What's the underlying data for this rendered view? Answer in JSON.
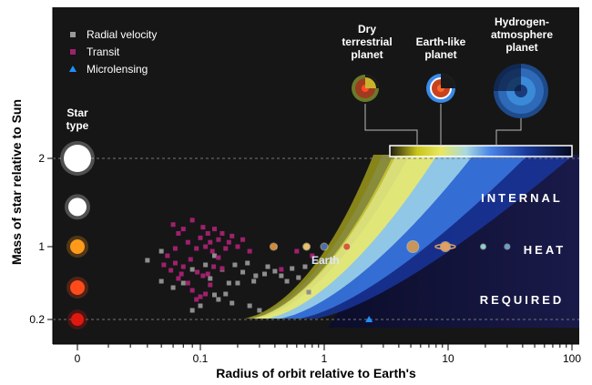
{
  "chart_data": {
    "type": "scatter",
    "title": "",
    "xlabel": "Radius of orbit relative to Earth's",
    "ylabel": "Mass of star relative to Sun",
    "x_scale": "log",
    "x_ticks": [
      {
        "value": 0.02,
        "label": "0"
      },
      {
        "value": 0.1,
        "label": "0.1"
      },
      {
        "value": 1,
        "label": "1"
      },
      {
        "value": 10,
        "label": "10"
      },
      {
        "value": 100,
        "label": "100"
      }
    ],
    "y_ticks": [
      {
        "value": 2,
        "label": "2"
      },
      {
        "value": 1,
        "label": "1"
      },
      {
        "value": 0.2,
        "label": "0.2"
      }
    ],
    "legend": [
      {
        "name": "Radial velocity",
        "marker": "square",
        "color": "#9a9a9a"
      },
      {
        "name": "Transit",
        "marker": "square",
        "color": "#a0206e"
      },
      {
        "name": "Microlensing",
        "marker": "triangle",
        "color": "#1e90ff"
      }
    ],
    "series": [
      {
        "name": "Radial velocity",
        "points": [
          [
            0.05,
            0.85
          ],
          [
            0.06,
            0.95
          ],
          [
            0.07,
            0.55
          ],
          [
            0.08,
            0.6
          ],
          [
            0.09,
            0.75
          ],
          [
            0.11,
            0.8
          ],
          [
            0.12,
            0.65
          ],
          [
            0.13,
            0.9
          ],
          [
            0.15,
            0.75
          ],
          [
            0.17,
            0.6
          ],
          [
            0.19,
            0.8
          ],
          [
            0.22,
            0.72
          ],
          [
            0.24,
            0.82
          ],
          [
            0.28,
            0.68
          ],
          [
            0.35,
            0.78
          ],
          [
            0.4,
            0.73
          ],
          [
            0.45,
            0.68
          ],
          [
            0.55,
            0.76
          ],
          [
            0.62,
            0.66
          ],
          [
            0.7,
            0.78
          ],
          [
            0.75,
            0.5
          ],
          [
            0.5,
            0.62
          ],
          [
            0.3,
            0.3
          ],
          [
            0.18,
            0.38
          ],
          [
            0.13,
            0.47
          ],
          [
            0.09,
            0.3
          ],
          [
            0.2,
            0.6
          ],
          [
            0.14,
            0.42
          ],
          [
            0.25,
            0.35
          ],
          [
            0.06,
            0.62
          ],
          [
            0.4,
            1.0
          ],
          [
            0.33,
            0.7
          ],
          [
            0.27,
            0.62
          ],
          [
            0.16,
            0.48
          ],
          [
            0.1,
            0.35
          ]
        ]
      },
      {
        "name": "Transit",
        "points": [
          [
            0.07,
            1.25
          ],
          [
            0.075,
            1.15
          ],
          [
            0.08,
            1.2
          ],
          [
            0.085,
            1.05
          ],
          [
            0.09,
            1.3
          ],
          [
            0.095,
            0.98
          ],
          [
            0.1,
            1.1
          ],
          [
            0.105,
            1.22
          ],
          [
            0.11,
            1.0
          ],
          [
            0.115,
            1.15
          ],
          [
            0.12,
            1.05
          ],
          [
            0.125,
            0.95
          ],
          [
            0.13,
            1.2
          ],
          [
            0.14,
            1.08
          ],
          [
            0.15,
            1.15
          ],
          [
            0.16,
            0.98
          ],
          [
            0.17,
            1.05
          ],
          [
            0.18,
            1.12
          ],
          [
            0.2,
            1.0
          ],
          [
            0.22,
            1.08
          ],
          [
            0.25,
            0.95
          ],
          [
            0.065,
            0.9
          ],
          [
            0.072,
            0.82
          ],
          [
            0.08,
            0.78
          ],
          [
            0.088,
            0.86
          ],
          [
            0.096,
            0.72
          ],
          [
            0.105,
            0.68
          ],
          [
            0.115,
            0.7
          ],
          [
            0.075,
            0.65
          ],
          [
            0.068,
            0.74
          ],
          [
            0.09,
            0.52
          ],
          [
            0.1,
            0.45
          ],
          [
            0.11,
            0.48
          ],
          [
            0.12,
            0.58
          ],
          [
            0.085,
            0.6
          ],
          [
            0.078,
            0.7
          ],
          [
            0.062,
            0.8
          ],
          [
            0.072,
            0.98
          ],
          [
            0.128,
            0.78
          ],
          [
            0.14,
            0.88
          ],
          [
            0.15,
            0.76
          ],
          [
            0.45,
            0.75
          ],
          [
            0.8,
            0.9
          ],
          [
            0.6,
            0.95
          ],
          [
            0.095,
            0.42
          ]
        ]
      },
      {
        "name": "Microlensing",
        "points": [
          [
            2.3,
            0.2
          ]
        ]
      }
    ],
    "star_types": {
      "label": "Star type",
      "items": [
        {
          "mass": 2,
          "color": "#ffffff"
        },
        {
          "mass": 1.45,
          "color": "#ffffff"
        },
        {
          "mass": 1,
          "color": "#ff9a1a"
        },
        {
          "mass": 0.55,
          "color": "#ff4a1a"
        },
        {
          "mass": 0.2,
          "color": "#e0180e"
        }
      ]
    },
    "planet_types": [
      {
        "label_line1": "Dry",
        "label_line2": "terrestrial",
        "label_line3": "planet",
        "bar_x": 5.2
      },
      {
        "label_line1": "Earth-like",
        "label_line2": "planet",
        "label_line3": "",
        "bar_x": 9
      },
      {
        "label_line1": "Hydrogen-",
        "label_line2": "atmosphere",
        "label_line3": "planet",
        "bar_x": 25
      }
    ],
    "annotations": {
      "earth_label": "Earth",
      "earth_x": 1,
      "earth_y": 1,
      "region_lines": [
        "INTERNAL",
        "HEAT",
        "REQUIRED"
      ]
    },
    "solar_planets": [
      {
        "x": 0.39,
        "y": 1,
        "color": "#d4883a"
      },
      {
        "x": 0.72,
        "y": 1,
        "color": "#e8c070"
      },
      {
        "x": 1,
        "y": 1,
        "color": "#4a6fb0"
      },
      {
        "x": 1.52,
        "y": 1,
        "color": "#d25c3a"
      },
      {
        "x": 5.2,
        "y": 1,
        "color": "#c9955a"
      },
      {
        "x": 9.5,
        "y": 1,
        "color": "#e0a060"
      },
      {
        "x": 19.2,
        "y": 1,
        "color": "#7fd6e0"
      },
      {
        "x": 30,
        "y": 1,
        "color": "#5aa0e8"
      }
    ],
    "grid": false
  }
}
